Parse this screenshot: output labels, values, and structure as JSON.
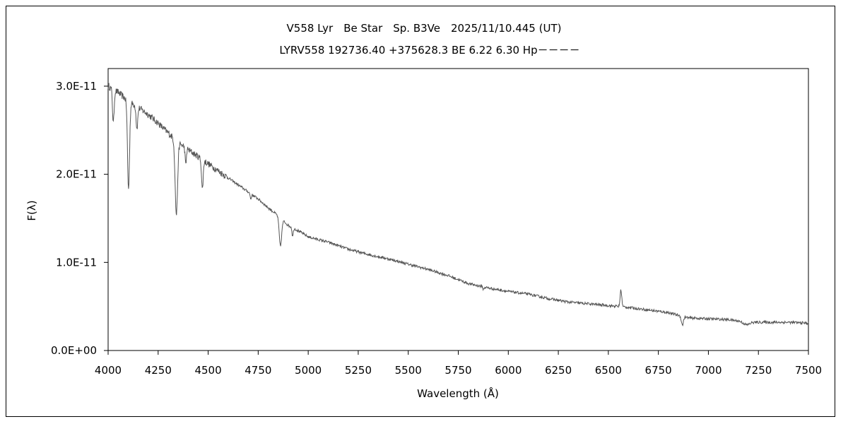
{
  "chart_data": {
    "type": "line",
    "title": "V558 Lyr　Be Star　Sp. B3Ve　2025/11/10.445 (UT)",
    "subtitle": "LYRV558 192736.40 +375628.3 BE 6.22 6.30 Hp－－－－",
    "xlabel": "Wavelength (Å)",
    "ylabel": "F(λ)",
    "xlim": [
      4000,
      7500
    ],
    "ylim": [
      0,
      3.2e-11
    ],
    "x_ticks": [
      4000,
      4250,
      4500,
      4750,
      5000,
      5250,
      5500,
      5750,
      6000,
      6250,
      6500,
      6750,
      7000,
      7250,
      7500
    ],
    "x_tick_labels": [
      "4000",
      "4250",
      "4500",
      "4750",
      "5000",
      "5250",
      "5500",
      "5750",
      "6000",
      "6250",
      "6500",
      "6750",
      "7000",
      "7250",
      "7500"
    ],
    "y_ticks": [
      0,
      1e-11,
      2e-11,
      3e-11
    ],
    "y_tick_labels": [
      "0.0E+00",
      "1.0E-11",
      "2.0E-11",
      "3.0E-11"
    ],
    "grid": false,
    "color": "#555555",
    "series": [
      {
        "continuum": [
          [
            4000,
            3e-11
          ],
          [
            4050,
            2.93e-11
          ],
          [
            4100,
            2.83e-11
          ],
          [
            4150,
            2.76e-11
          ],
          [
            4200,
            2.68e-11
          ],
          [
            4250,
            2.58e-11
          ],
          [
            4300,
            2.47e-11
          ],
          [
            4350,
            2.36e-11
          ],
          [
            4400,
            2.28e-11
          ],
          [
            4450,
            2.2e-11
          ],
          [
            4500,
            2.12e-11
          ],
          [
            4550,
            2.04e-11
          ],
          [
            4600,
            1.96e-11
          ],
          [
            4650,
            1.88e-11
          ],
          [
            4700,
            1.8e-11
          ],
          [
            4750,
            1.72e-11
          ],
          [
            4800,
            1.62e-11
          ],
          [
            4850,
            1.53e-11
          ],
          [
            4900,
            1.42e-11
          ],
          [
            4950,
            1.36e-11
          ],
          [
            5000,
            1.29e-11
          ],
          [
            5100,
            1.23e-11
          ],
          [
            5200,
            1.15e-11
          ],
          [
            5300,
            1.09e-11
          ],
          [
            5400,
            1.04e-11
          ],
          [
            5500,
            9.8e-12
          ],
          [
            5600,
            9.2e-12
          ],
          [
            5700,
            8.5e-12
          ],
          [
            5800,
            7.6e-12
          ],
          [
            5900,
            7.1e-12
          ],
          [
            6000,
            6.7e-12
          ],
          [
            6100,
            6.4e-12
          ],
          [
            6200,
            5.9e-12
          ],
          [
            6300,
            5.5e-12
          ],
          [
            6400,
            5.3e-12
          ],
          [
            6500,
            5.1e-12
          ],
          [
            6600,
            4.9e-12
          ],
          [
            6700,
            4.6e-12
          ],
          [
            6800,
            4.3e-12
          ],
          [
            6900,
            3.7e-12
          ],
          [
            7000,
            3.6e-12
          ],
          [
            7100,
            3.5e-12
          ],
          [
            7200,
            3.2e-12
          ],
          [
            7300,
            3.2e-12
          ],
          [
            7400,
            3.2e-12
          ],
          [
            7500,
            3.1e-12
          ]
        ],
        "features": [
          {
            "wavelength": 4026,
            "depth": 3.8e-12,
            "width": 4
          },
          {
            "wavelength": 4102,
            "depth": 1e-11,
            "width": 5
          },
          {
            "wavelength": 4144,
            "depth": 2.5e-12,
            "width": 4
          },
          {
            "wavelength": 4341,
            "depth": 8.4e-12,
            "width": 6
          },
          {
            "wavelength": 4388,
            "depth": 2e-12,
            "width": 3
          },
          {
            "wavelength": 4471,
            "depth": 3.4e-12,
            "width": 4
          },
          {
            "wavelength": 4713,
            "depth": 6e-13,
            "width": 3
          },
          {
            "wavelength": 4861,
            "depth": 3.2e-12,
            "width": 6
          },
          {
            "wavelength": 4922,
            "depth": 1e-12,
            "width": 3
          },
          {
            "wavelength": 5876,
            "depth": 3e-13,
            "width": 3
          },
          {
            "wavelength": 6563,
            "depth": -1.9e-12,
            "width": 4
          },
          {
            "wavelength": 6870,
            "depth": 1e-12,
            "width": 5
          },
          {
            "wavelength": 7190,
            "depth": 3e-13,
            "width": 15
          }
        ]
      }
    ]
  }
}
